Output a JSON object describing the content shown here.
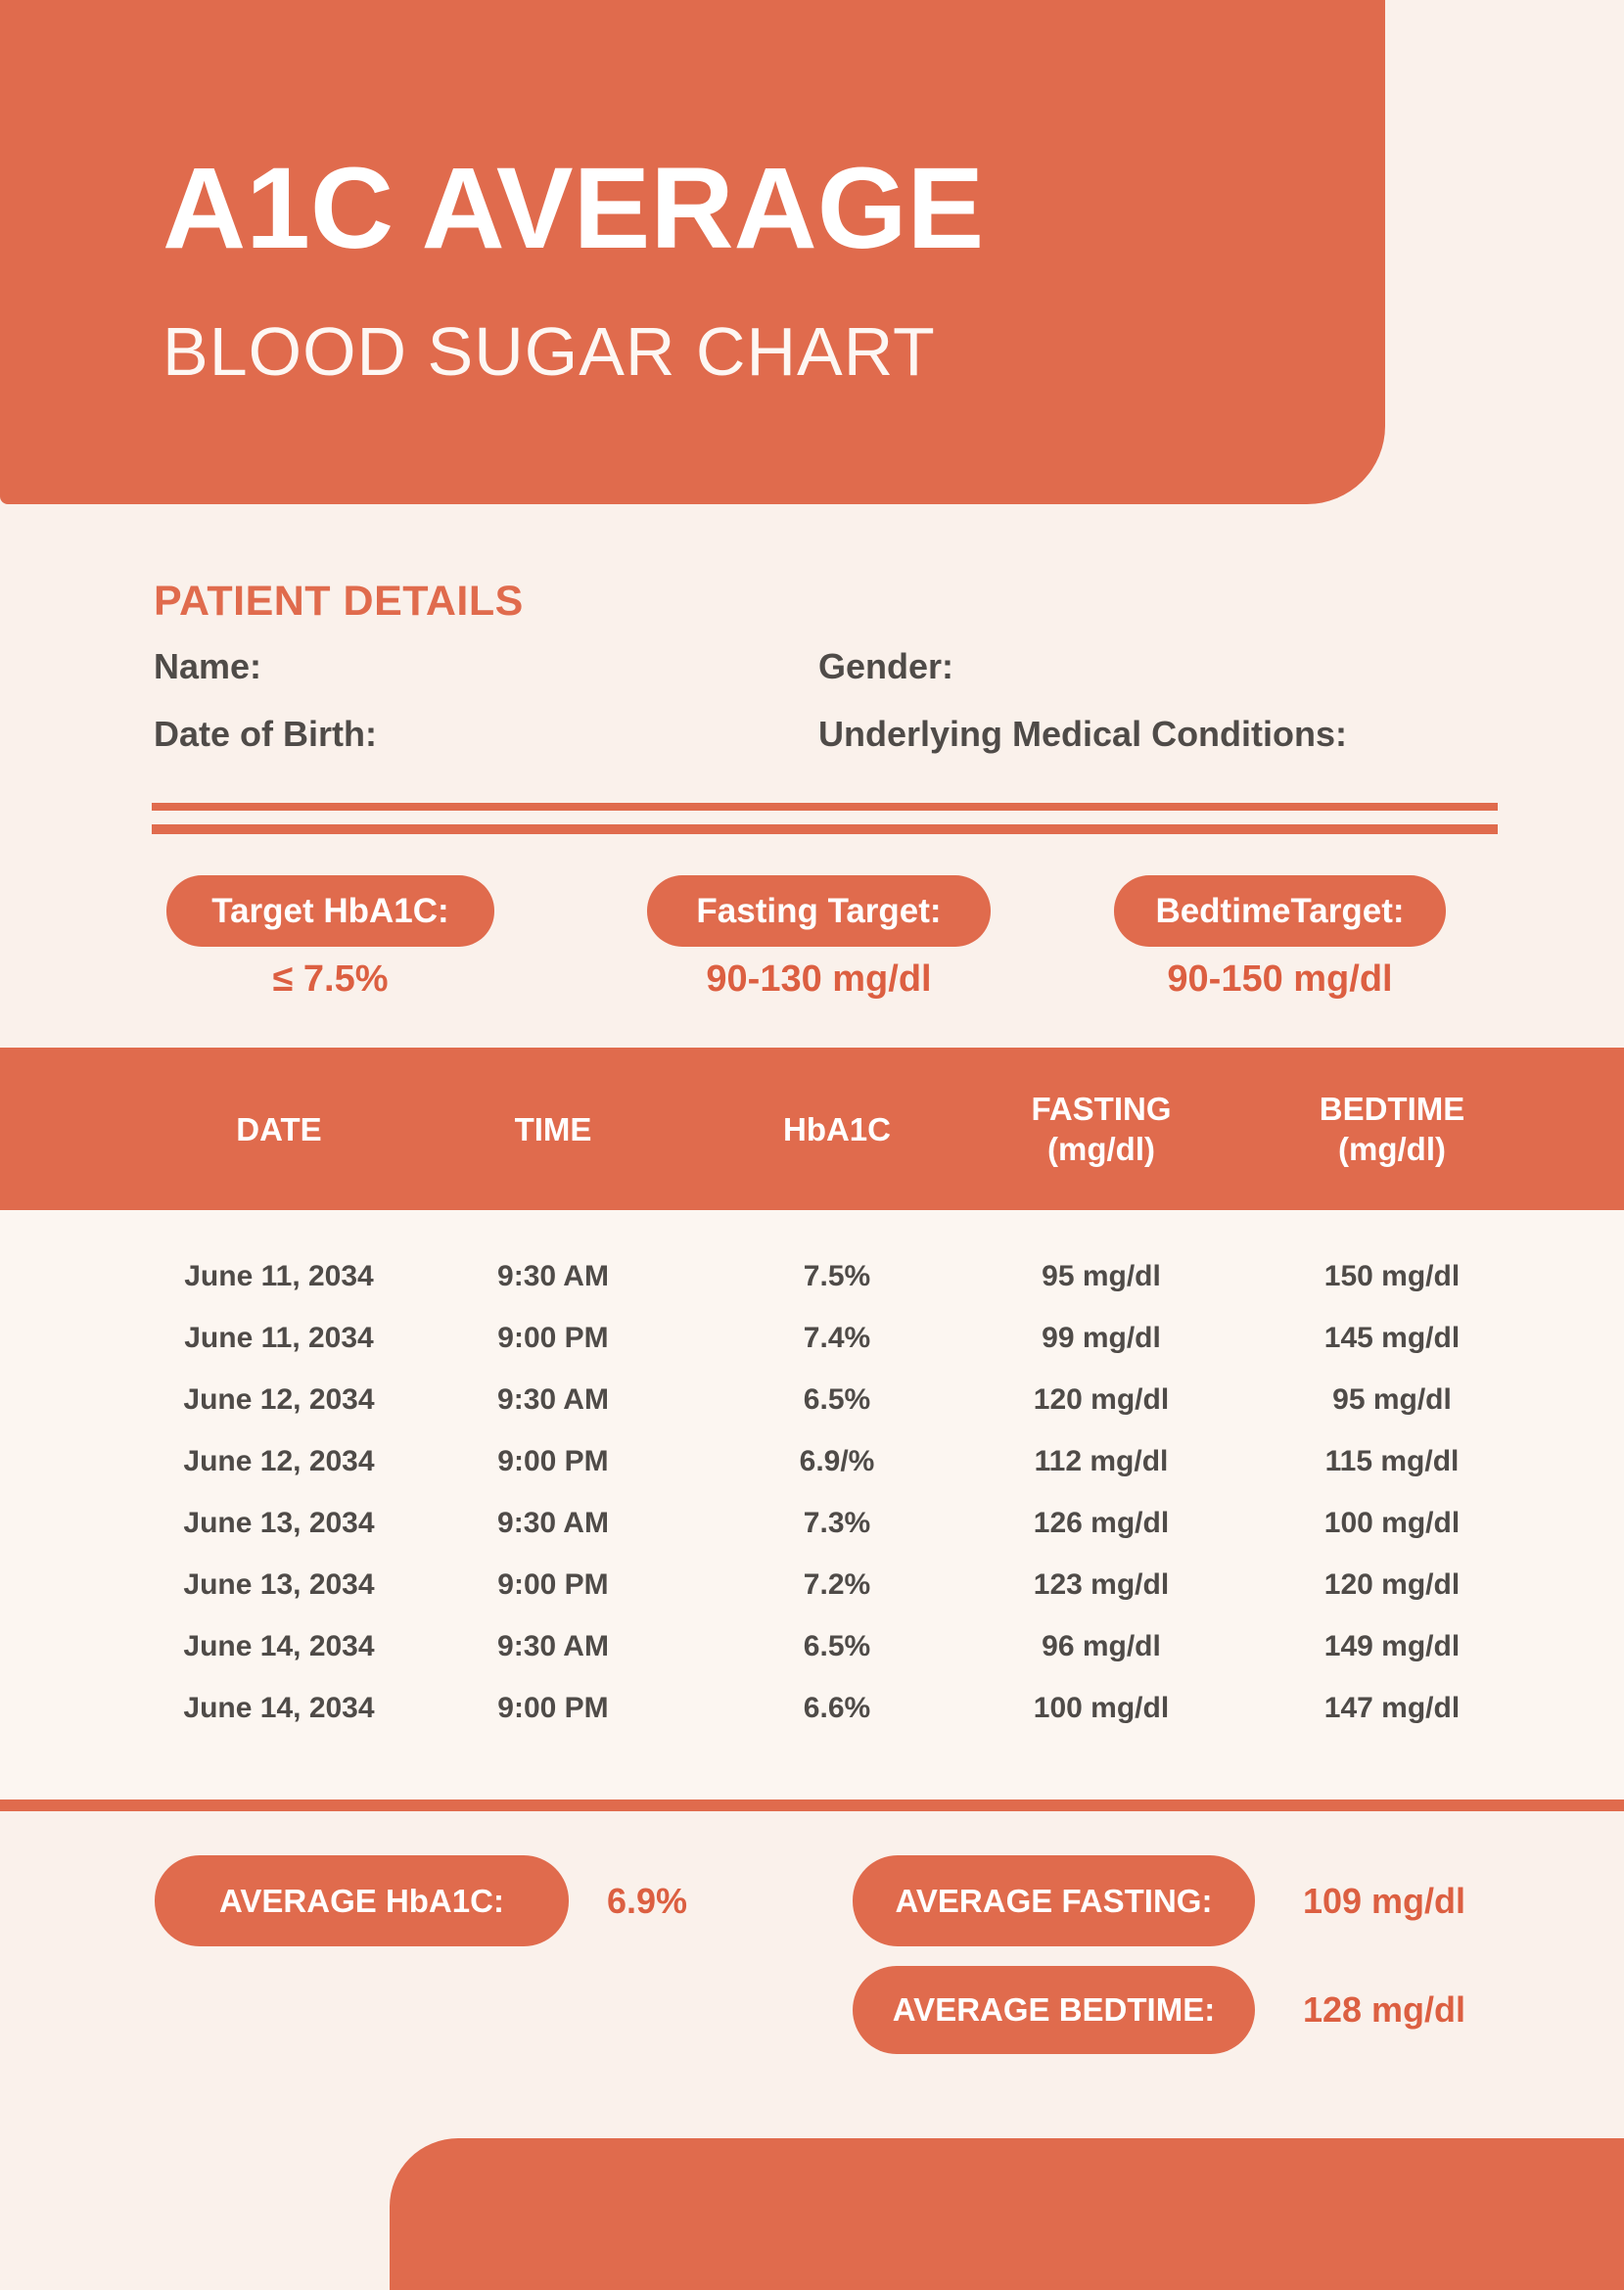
{
  "colors": {
    "accent": "#E06B4D",
    "accent_text": "#DC5F41",
    "dark_text": "#4F4B48",
    "background": "#FAF1EB",
    "table_section_background": "#FCF6F1",
    "banner_text": "#FFFFFF"
  },
  "header": {
    "title": "A1C AVERAGE",
    "subtitle": "BLOOD SUGAR CHART"
  },
  "patient": {
    "heading": "PATIENT DETAILS",
    "name_label": "Name:",
    "gender_label": "Gender:",
    "dob_label": "Date of Birth:",
    "conditions_label": "Underlying Medical Conditions:"
  },
  "targets": [
    {
      "label": "Target HbA1C:",
      "value": "≤ 7.5%"
    },
    {
      "label": "Fasting Target:",
      "value": "90-130 mg/dl"
    },
    {
      "label": "BedtimeTarget:",
      "value": "90-150 mg/dl"
    }
  ],
  "table": {
    "columns": [
      {
        "l1": "DATE",
        "l2": ""
      },
      {
        "l1": "TIME",
        "l2": ""
      },
      {
        "l1": "HbA1C",
        "l2": ""
      },
      {
        "l1": "FASTING",
        "l2": "(mg/dl)"
      },
      {
        "l1": "BEDTIME",
        "l2": "(mg/dl)"
      }
    ],
    "rows": [
      [
        "June 11, 2034",
        "9:30 AM",
        "7.5%",
        "95 mg/dl",
        "150 mg/dl"
      ],
      [
        "June 11, 2034",
        "9:00 PM",
        "7.4%",
        "99 mg/dl",
        "145 mg/dl"
      ],
      [
        "June 12, 2034",
        "9:30 AM",
        "6.5%",
        "120 mg/dl",
        "95 mg/dl"
      ],
      [
        "June 12, 2034",
        "9:00 PM",
        "6.9/%",
        "112 mg/dl",
        "115 mg/dl"
      ],
      [
        "June 13, 2034",
        "9:30 AM",
        "7.3%",
        "126 mg/dl",
        "100 mg/dl"
      ],
      [
        "June 13, 2034",
        "9:00 PM",
        "7.2%",
        "123 mg/dl",
        "120 mg/dl"
      ],
      [
        "June 14, 2034",
        "9:30 AM",
        "6.5%",
        "96 mg/dl",
        "149 mg/dl"
      ],
      [
        "June 14, 2034",
        "9:00 PM",
        "6.6%",
        "100 mg/dl",
        "147 mg/dl"
      ]
    ]
  },
  "averages": {
    "hba1c": {
      "label": "AVERAGE HbA1C:",
      "value": "6.9%"
    },
    "fasting": {
      "label": "AVERAGE FASTING:",
      "value": "109 mg/dl"
    },
    "bedtime": {
      "label": "AVERAGE BEDTIME:",
      "value": "128 mg/dl"
    }
  }
}
